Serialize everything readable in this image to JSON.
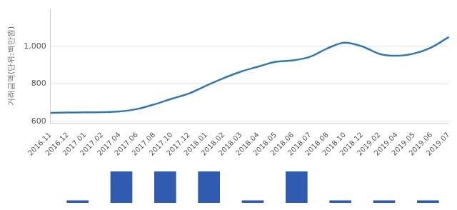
{
  "chart_data": [
    {
      "type": "line",
      "y_label": "거래금액(단위:백만원)",
      "categories": [
        "2016.11",
        "2016.12",
        "2017.01",
        "2017.02",
        "2017.04",
        "2017.06",
        "2017.08",
        "2017.10",
        "2017.12",
        "2018.01",
        "2018.02",
        "2018.03",
        "2018.04",
        "2018.05",
        "2018.06",
        "2018.07",
        "2018.08",
        "2018.10",
        "2018.12",
        "2019.02",
        "2019.04",
        "2019.05",
        "2019.06",
        "2019.07"
      ],
      "values": [
        645,
        646,
        647,
        648,
        652,
        665,
        690,
        720,
        748,
        790,
        830,
        865,
        892,
        918,
        925,
        945,
        990,
        1020,
        1000,
        960,
        950,
        962,
        995,
        1050
      ],
      "color": "#2e79b5",
      "marker": "none",
      "line_style": "solid",
      "ylim": [
        590,
        1200
      ],
      "yticks": [
        600,
        800,
        {
          "value": 1000,
          "label": "1,000"
        }
      ],
      "grid": true
    },
    {
      "type": "bar",
      "categories": [
        null,
        null,
        null,
        null,
        null,
        null,
        null,
        null,
        null
      ],
      "values": [
        0.08,
        1,
        1,
        1,
        0.08,
        1,
        0.08,
        0.08,
        0.08
      ],
      "color": "#2f5cb0",
      "grid": false,
      "tick_labels": false
    }
  ]
}
